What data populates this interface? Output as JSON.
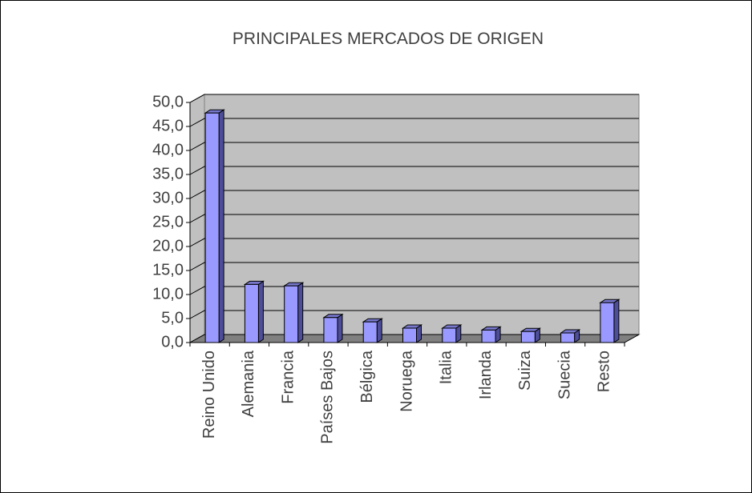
{
  "chart_data": {
    "type": "bar3d",
    "title": "PRINCIPALES MERCADOS DE ORIGEN",
    "categories": [
      "Reino Unido",
      "Alemania",
      "Francia",
      "Países Bajos",
      "Bélgica",
      "Noruega",
      "Italia",
      "Irlanda",
      "Suiza",
      "Suecia",
      "Resto"
    ],
    "values": [
      47.8,
      12.1,
      11.8,
      5.2,
      4.3,
      3.0,
      3.0,
      2.6,
      2.3,
      2.0,
      8.3
    ],
    "color": "#9999ff",
    "ylim": [
      0,
      50
    ],
    "yticks": [
      {
        "value": 0,
        "label": "0,0"
      },
      {
        "value": 5,
        "label": "5,0"
      },
      {
        "value": 10,
        "label": "10,0"
      },
      {
        "value": 15,
        "label": "15,0"
      },
      {
        "value": 20,
        "label": "20,0"
      },
      {
        "value": 25,
        "label": "25,0"
      },
      {
        "value": 30,
        "label": "30,0"
      },
      {
        "value": 35,
        "label": "35,0"
      },
      {
        "value": 40,
        "label": "40,0"
      },
      {
        "value": 45,
        "label": "45,0"
      },
      {
        "value": 50,
        "label": "50,0"
      }
    ],
    "grid": true
  }
}
